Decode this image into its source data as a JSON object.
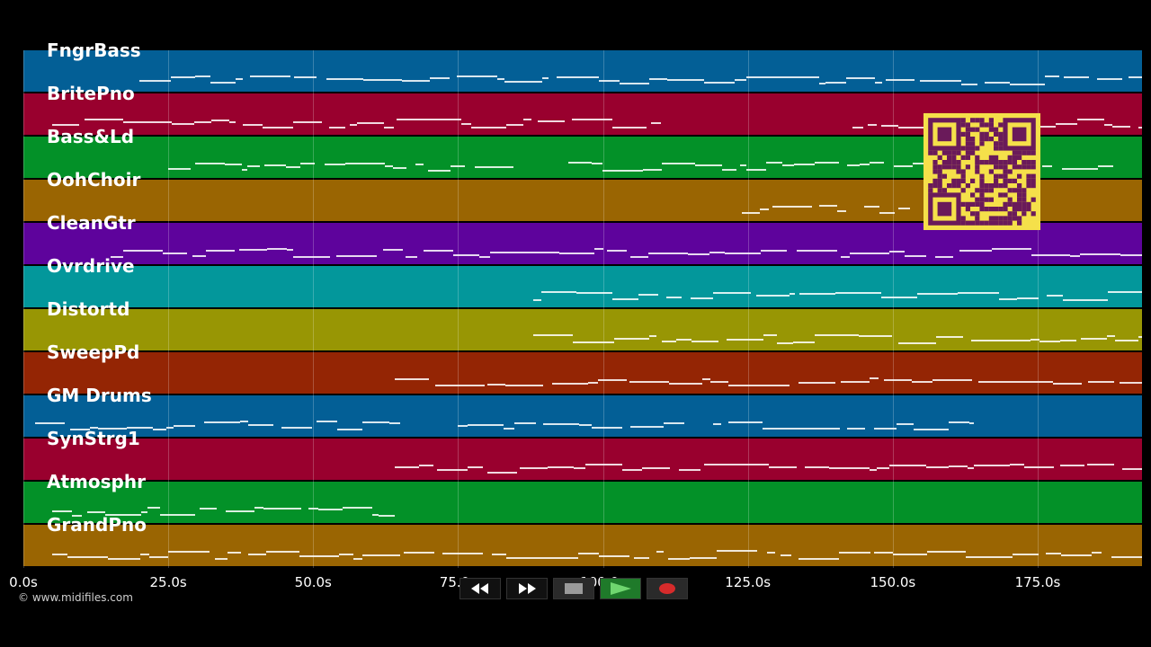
{
  "copyright": "© www.midifiles.com",
  "time_axis": {
    "ticks": [
      "0.0s",
      "25.0s",
      "50.0s",
      "75.0s",
      "100.0s",
      "125.0s",
      "150.0s",
      "175.0s"
    ],
    "tick_seconds": [
      0,
      25,
      50,
      75,
      100,
      125,
      150,
      175
    ],
    "max_seconds": 193
  },
  "tracks": [
    {
      "name": "FngrBass",
      "color": "#035f96",
      "notes": [
        [
          20,
          193
        ]
      ]
    },
    {
      "name": "BritePno",
      "color": "#99002e",
      "notes": [
        [
          5,
          110
        ],
        [
          143,
          193
        ]
      ]
    },
    {
      "name": "Bass&Ld",
      "color": "#039128",
      "notes": [
        [
          25,
          85
        ],
        [
          94,
          160
        ],
        [
          164,
          188
        ]
      ]
    },
    {
      "name": "OohChoir",
      "color": "#9a6502",
      "notes": [
        [
          124,
          142
        ],
        [
          145,
          153
        ]
      ]
    },
    {
      "name": "CleanGtr",
      "color": "#5e039c",
      "notes": [
        [
          15,
          193
        ]
      ]
    },
    {
      "name": "Ovrdrive",
      "color": "#03979b",
      "notes": [
        [
          88,
          193
        ]
      ]
    },
    {
      "name": "Distortd",
      "color": "#989604",
      "notes": [
        [
          88,
          193
        ]
      ]
    },
    {
      "name": "SweepPd",
      "color": "#942504",
      "notes": [
        [
          64,
          193
        ]
      ]
    },
    {
      "name": "GM Drums",
      "color": "#035f96",
      "notes": [
        [
          2,
          65
        ],
        [
          75,
          114
        ],
        [
          119,
          164
        ]
      ]
    },
    {
      "name": "SynStrg1",
      "color": "#99002e",
      "notes": [
        [
          64,
          193
        ]
      ]
    },
    {
      "name": "Atmosphr",
      "color": "#039128",
      "notes": [
        [
          5,
          64
        ]
      ]
    },
    {
      "name": "GrandPno",
      "color": "#9a6502",
      "notes": [
        [
          5,
          193
        ]
      ]
    }
  ],
  "transport": {
    "rewind_icon": "rewind-icon",
    "fastforward_icon": "fast-forward-icon",
    "stop_icon": "stop-icon",
    "play_icon": "play-icon",
    "record_icon": "record-icon"
  },
  "qr": {
    "color": "#f5e04a",
    "dark": "#6a1a5a"
  }
}
